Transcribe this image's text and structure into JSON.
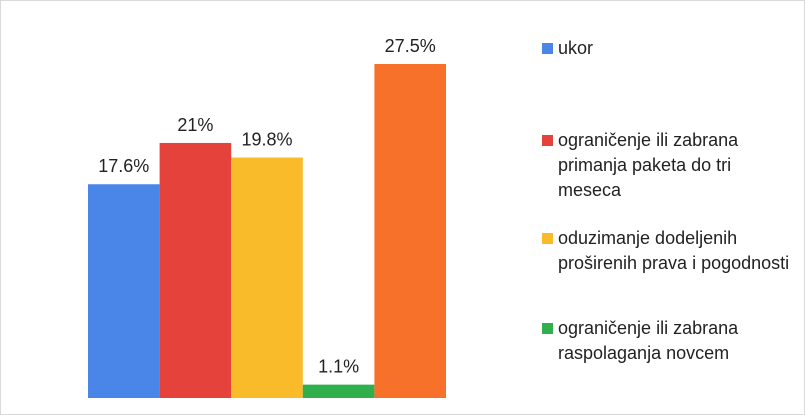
{
  "chart_data": {
    "type": "bar",
    "categories": [
      "ukor",
      "ograničenje ili zabrana primanja paketa do tri meseca",
      "oduzimanje dodeljenih proširenih prava i pogodnosti",
      "ograničenje ili zabrana raspolaganja novcem",
      null
    ],
    "values": [
      17.6,
      21,
      19.8,
      1.1,
      27.5
    ],
    "value_labels": [
      "17.6%",
      "21%",
      "19.8%",
      "1.1%",
      "27.5%"
    ],
    "colors": [
      "#4a86e8",
      "#e5423b",
      "#f9bb2a",
      "#2fb04c",
      "#f7712a"
    ],
    "legend": "right"
  }
}
